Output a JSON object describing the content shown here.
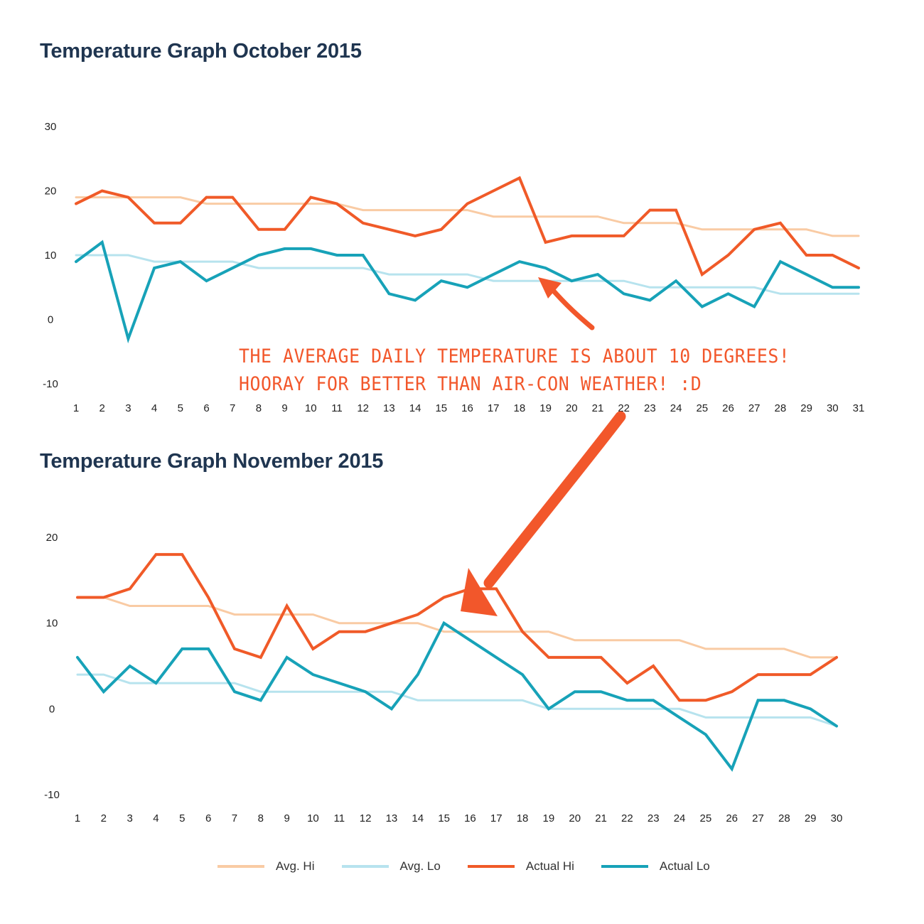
{
  "annotation": {
    "line1": "THE AVERAGE DAILY TEMPERATURE IS ABOUT 10 DEGREES!",
    "line2": "HOORAY FOR BETTER THAN AIR-CON WEATHER! :D"
  },
  "legend": [
    {
      "name": "Avg. Hi",
      "color": "#f9cba4"
    },
    {
      "name": "Avg. Lo",
      "color": "#b7e3ee"
    },
    {
      "name": "Actual Hi",
      "color": "#f05a28"
    },
    {
      "name": "Actual Lo",
      "color": "#17a2b8"
    }
  ],
  "chart_data": [
    {
      "type": "line",
      "title": "Temperature Graph October 2015",
      "xlabel": "",
      "ylabel": "",
      "x": [
        1,
        2,
        3,
        4,
        5,
        6,
        7,
        8,
        9,
        10,
        11,
        12,
        13,
        14,
        15,
        16,
        17,
        18,
        19,
        20,
        21,
        22,
        23,
        24,
        25,
        26,
        27,
        28,
        29,
        30,
        31
      ],
      "ylim": [
        -10,
        30
      ],
      "yticks": [
        30,
        20,
        10,
        0,
        -10
      ],
      "grid": false,
      "series": [
        {
          "name": "Avg. Hi",
          "color": "#f9cba4",
          "values": [
            19,
            19,
            19,
            19,
            19,
            18,
            18,
            18,
            18,
            18,
            18,
            17,
            17,
            17,
            17,
            17,
            16,
            16,
            16,
            16,
            16,
            15,
            15,
            15,
            14,
            14,
            14,
            14,
            14,
            13,
            13
          ]
        },
        {
          "name": "Avg. Lo",
          "color": "#b7e3ee",
          "values": [
            10,
            10,
            10,
            9,
            9,
            9,
            9,
            8,
            8,
            8,
            8,
            8,
            7,
            7,
            7,
            7,
            6,
            6,
            6,
            6,
            6,
            6,
            5,
            5,
            5,
            5,
            5,
            4,
            4,
            4,
            4
          ]
        },
        {
          "name": "Actual Hi",
          "color": "#f05a28",
          "values": [
            18,
            20,
            19,
            15,
            15,
            19,
            19,
            14,
            14,
            19,
            18,
            15,
            14,
            13,
            14,
            18,
            20,
            22,
            12,
            13,
            13,
            13,
            17,
            17,
            7,
            10,
            14,
            15,
            10,
            10,
            8
          ]
        },
        {
          "name": "Actual Lo",
          "color": "#17a2b8",
          "values": [
            9,
            12,
            -3,
            8,
            9,
            6,
            8,
            10,
            11,
            11,
            10,
            10,
            4,
            3,
            6,
            5,
            7,
            9,
            8,
            6,
            7,
            4,
            3,
            6,
            2,
            4,
            2,
            9,
            7,
            5,
            5
          ]
        }
      ]
    },
    {
      "type": "line",
      "title": "Temperature Graph November 2015",
      "xlabel": "",
      "ylabel": "",
      "x": [
        1,
        2,
        3,
        4,
        5,
        6,
        7,
        8,
        9,
        10,
        11,
        12,
        13,
        14,
        15,
        16,
        17,
        18,
        19,
        20,
        21,
        22,
        23,
        24,
        25,
        26,
        27,
        28,
        29,
        30
      ],
      "ylim": [
        -10,
        20
      ],
      "yticks": [
        20,
        10,
        0,
        -10
      ],
      "grid": false,
      "series": [
        {
          "name": "Avg. Hi",
          "color": "#f9cba4",
          "values": [
            13,
            13,
            12,
            12,
            12,
            12,
            11,
            11,
            11,
            11,
            10,
            10,
            10,
            10,
            9,
            9,
            9,
            9,
            9,
            8,
            8,
            8,
            8,
            8,
            7,
            7,
            7,
            7,
            6,
            6
          ]
        },
        {
          "name": "Avg. Lo",
          "color": "#b7e3ee",
          "values": [
            4,
            4,
            3,
            3,
            3,
            3,
            3,
            2,
            2,
            2,
            2,
            2,
            2,
            1,
            1,
            1,
            1,
            1,
            0,
            0,
            0,
            0,
            0,
            0,
            -1,
            -1,
            -1,
            -1,
            -1,
            -2
          ]
        },
        {
          "name": "Actual Hi",
          "color": "#f05a28",
          "values": [
            13,
            13,
            14,
            18,
            18,
            13,
            7,
            6,
            12,
            7,
            9,
            9,
            10,
            11,
            13,
            14,
            14,
            9,
            6,
            6,
            6,
            3,
            5,
            1,
            1,
            2,
            4,
            4,
            4,
            6
          ]
        },
        {
          "name": "Actual Lo",
          "color": "#17a2b8",
          "values": [
            6,
            2,
            5,
            3,
            7,
            7,
            2,
            1,
            6,
            4,
            3,
            2,
            0,
            4,
            10,
            8,
            6,
            4,
            0,
            2,
            2,
            1,
            1,
            -1,
            -3,
            -7,
            1,
            1,
            0,
            -2
          ]
        }
      ]
    }
  ]
}
